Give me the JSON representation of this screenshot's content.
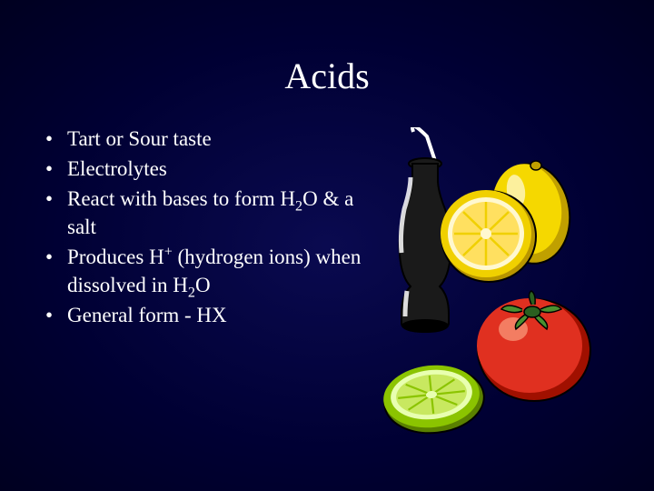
{
  "title": "Acids",
  "bullets": [
    {
      "html": "Tart or Sour taste"
    },
    {
      "html": "Electrolytes"
    },
    {
      "html": "React with bases to form H<sub>2</sub>O & a salt"
    },
    {
      "html": "Produces H<sup>+</sup> (hydrogen ions) when dissolved in H<sub>2</sub>O"
    },
    {
      "html": "General form - HX"
    }
  ],
  "clipart": {
    "bottle": {
      "body_fill": "#1a1a1a",
      "highlight": "#ffffff",
      "straw_color": "#ffffff"
    },
    "lemon_half": {
      "rind": "#f0d000",
      "rind_shadow": "#b89500",
      "pith": "#fff8d0",
      "segments": "#ffe060",
      "segment_lines": "#f0d000"
    },
    "lime_half": {
      "rind": "#8bc400",
      "rind_shadow": "#5a8000",
      "pith": "#e8ffb0",
      "segments": "#c8e860",
      "segment_lines": "#8bc400"
    },
    "tomato": {
      "body": "#e03020",
      "body_shadow": "#a01000",
      "highlight": "#ffb090",
      "leaf": "#2a6020",
      "leaf_light": "#4a9030"
    },
    "whole_lemon": {
      "body": "#f5d800",
      "body_shadow": "#c0a000",
      "highlight": "#fffbe0"
    },
    "outline": "#000000"
  }
}
